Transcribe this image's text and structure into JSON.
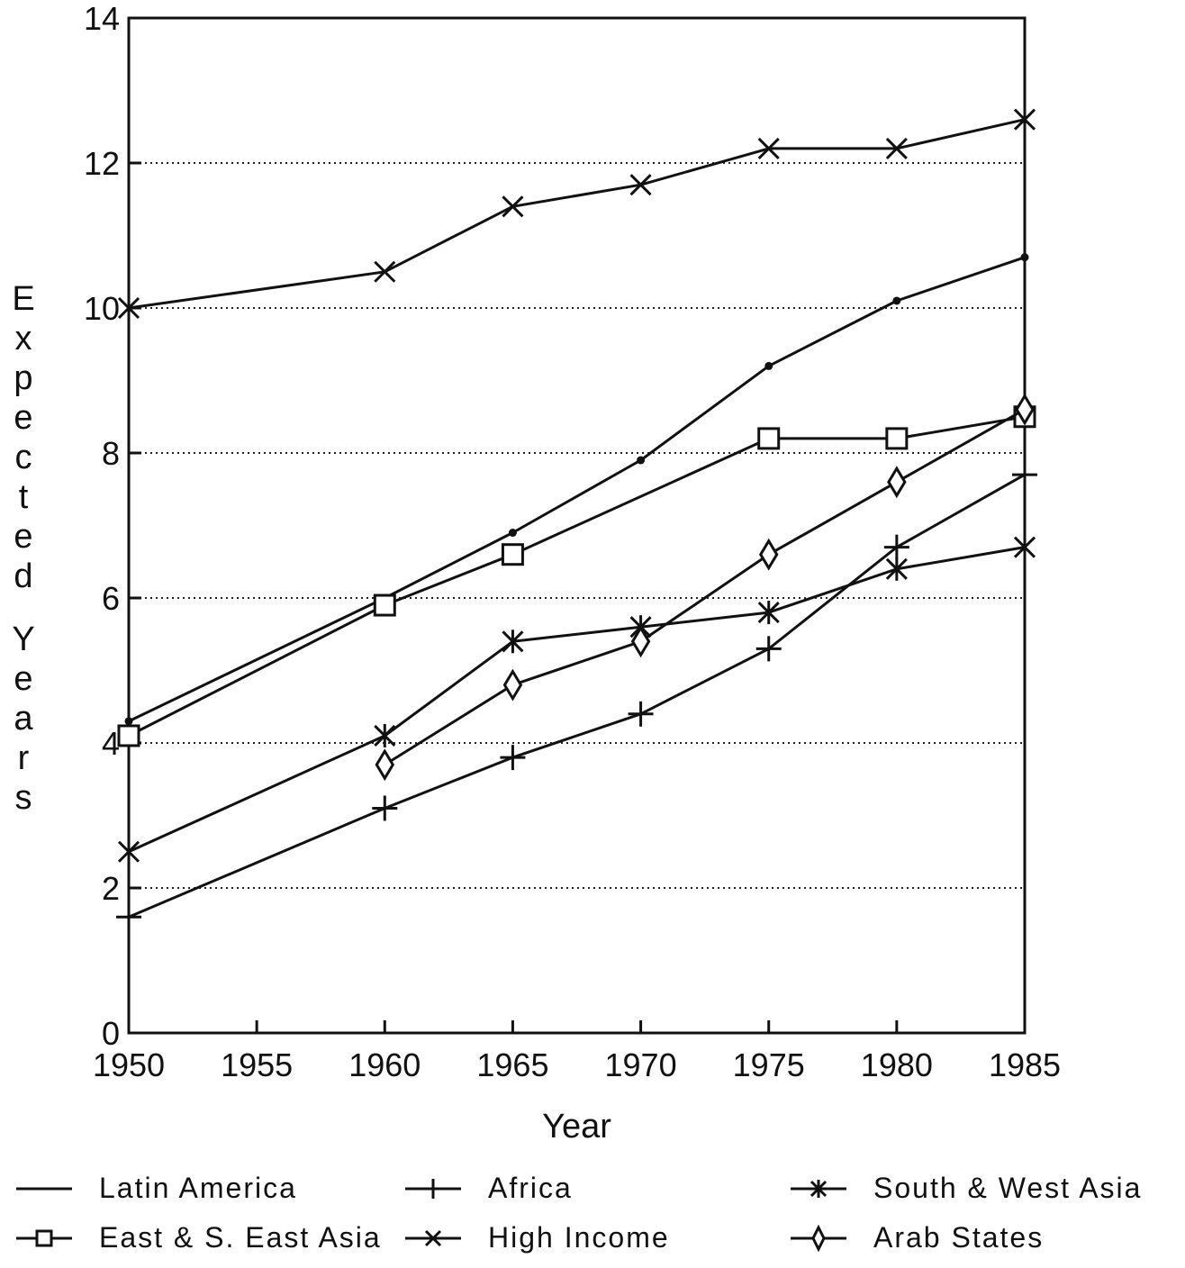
{
  "chart_data": {
    "type": "line",
    "title": "",
    "xlabel": "Year",
    "ylabel": "Expected Years",
    "xlim": [
      1950,
      1985
    ],
    "ylim": [
      0,
      14
    ],
    "x_ticks": [
      "1950",
      "1955",
      "1960",
      "1965",
      "1970",
      "1975",
      "1980",
      "1985"
    ],
    "y_ticks": [
      "0",
      "2",
      "4",
      "6",
      "8",
      "10",
      "12",
      "14"
    ],
    "grid": "horizontal dotted",
    "legend_position": "bottom",
    "series": [
      {
        "name": "Latin America",
        "marker": "dot",
        "x": [
          1950,
          1960,
          1965,
          1970,
          1975,
          1980,
          1985
        ],
        "y": [
          4.3,
          6.0,
          6.9,
          7.9,
          9.2,
          10.1,
          10.7
        ]
      },
      {
        "name": "Africa",
        "marker": "plus",
        "x": [
          1950,
          1960,
          1965,
          1970,
          1975,
          1980,
          1985
        ],
        "y": [
          1.6,
          3.1,
          3.8,
          4.4,
          5.3,
          6.7,
          7.7
        ]
      },
      {
        "name": "South & West Asia",
        "marker": "star",
        "x": [
          1950,
          1960,
          1965,
          1970,
          1975,
          1980,
          1985
        ],
        "y": [
          2.5,
          4.1,
          5.4,
          5.6,
          5.8,
          6.4,
          6.7
        ]
      },
      {
        "name": "East & S. East Asia",
        "marker": "square",
        "x": [
          1950,
          1960,
          1965,
          1975,
          1980,
          1985
        ],
        "y": [
          4.1,
          5.9,
          6.6,
          8.2,
          8.2,
          8.5
        ]
      },
      {
        "name": "High Income",
        "marker": "x",
        "x": [
          1950,
          1960,
          1965,
          1970,
          1975,
          1980,
          1985
        ],
        "y": [
          10.0,
          10.5,
          11.4,
          11.7,
          12.2,
          12.2,
          12.6
        ]
      },
      {
        "name": "Arab States",
        "marker": "diamond",
        "x": [
          1960,
          1965,
          1970,
          1975,
          1980,
          1985
        ],
        "y": [
          3.7,
          4.8,
          5.4,
          6.6,
          7.6,
          8.6
        ]
      }
    ],
    "legend": [
      {
        "label": "Latin America",
        "marker": "none"
      },
      {
        "label": "Africa",
        "marker": "plus"
      },
      {
        "label": "South & West Asia",
        "marker": "star"
      },
      {
        "label": "East & S. East Asia",
        "marker": "square"
      },
      {
        "label": "High Income",
        "marker": "x"
      },
      {
        "label": "Arab States",
        "marker": "diamond"
      }
    ]
  }
}
